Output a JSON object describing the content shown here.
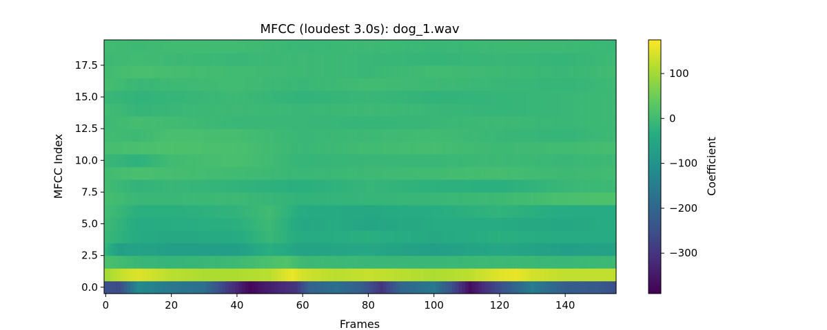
{
  "chart_data": {
    "type": "heatmap",
    "title": "MFCC (loudest 3.0s): dog_1.wav",
    "xlabel": "Frames",
    "ylabel": "MFCC Index",
    "colorbar_label": "Coefficient",
    "colormap": "viridis",
    "n_frames": 156,
    "n_coefficients": 20,
    "xlim": [
      -0.5,
      155.5
    ],
    "ylim": [
      -0.5,
      19.5
    ],
    "x_ticks": [
      0,
      20,
      40,
      60,
      80,
      100,
      120,
      140
    ],
    "x_tick_labels": [
      "0",
      "20",
      "40",
      "60",
      "80",
      "100",
      "120",
      "140"
    ],
    "y_ticks": [
      0.0,
      2.5,
      5.0,
      7.5,
      10.0,
      12.5,
      15.0,
      17.5
    ],
    "y_tick_labels": [
      "0.0",
      "2.5",
      "5.0",
      "7.5",
      "10.0",
      "12.5",
      "15.0",
      "17.5"
    ],
    "color_range": [
      -390,
      175
    ],
    "colorbar_ticks": [
      100,
      0,
      -100,
      -200,
      -300
    ],
    "colorbar_tick_labels": [
      "100",
      "0",
      "−100",
      "−200",
      "−300"
    ],
    "coefficient_profiles": [
      {
        "index": 0,
        "frames": [
          0,
          4,
          10,
          20,
          30,
          38,
          44,
          48,
          52,
          58,
          62,
          70,
          78,
          84,
          90,
          100,
          105,
          111,
          116,
          124,
          130,
          140,
          150,
          155
        ],
        "values": [
          -250,
          -260,
          -120,
          -160,
          -180,
          -300,
          -380,
          -350,
          -330,
          -300,
          -210,
          -180,
          -220,
          -300,
          -200,
          -160,
          -240,
          -370,
          -300,
          -210,
          -150,
          -220,
          -230,
          -250
        ]
      },
      {
        "index": 1,
        "frames": [
          0,
          5,
          10,
          20,
          30,
          40,
          50,
          57,
          60,
          70,
          80,
          90,
          100,
          110,
          120,
          125,
          130,
          140,
          155
        ],
        "values": [
          100,
          130,
          150,
          120,
          110,
          110,
          120,
          160,
          140,
          120,
          130,
          120,
          110,
          120,
          150,
          160,
          140,
          125,
          125
        ]
      },
      {
        "index": 2,
        "frames": [
          0,
          10,
          20,
          40,
          55,
          60,
          80,
          100,
          120,
          140,
          155
        ],
        "values": [
          10,
          -10,
          -15,
          -5,
          20,
          -5,
          -10,
          -10,
          -5,
          -10,
          -5
        ]
      },
      {
        "index": 3,
        "frames": [
          0,
          4,
          10,
          20,
          40,
          50,
          60,
          80,
          100,
          120,
          140,
          155
        ],
        "values": [
          -20,
          -70,
          -60,
          -70,
          -70,
          -30,
          -60,
          -50,
          -70,
          -50,
          -70,
          -60
        ]
      },
      {
        "index": 4,
        "frames": [
          0,
          10,
          20,
          40,
          50,
          60,
          80,
          100,
          120,
          140,
          155
        ],
        "values": [
          -10,
          -40,
          -45,
          -40,
          -10,
          -40,
          -30,
          -45,
          -30,
          -40,
          -40
        ]
      },
      {
        "index": 5,
        "frames": [
          0,
          10,
          20,
          40,
          50,
          60,
          70,
          80,
          100,
          120,
          140,
          155
        ],
        "values": [
          -5,
          -40,
          -35,
          -30,
          -5,
          -50,
          -40,
          -55,
          -40,
          -40,
          -50,
          -35
        ]
      },
      {
        "index": 6,
        "frames": [
          0,
          10,
          20,
          40,
          50,
          60,
          80,
          100,
          120,
          140,
          155
        ],
        "values": [
          0,
          -30,
          -30,
          -20,
          0,
          -40,
          -45,
          -35,
          -20,
          -40,
          -40
        ]
      },
      {
        "index": 7,
        "frames": [
          0,
          10,
          20,
          40,
          60,
          80,
          100,
          120,
          140,
          155
        ],
        "values": [
          5,
          -10,
          -10,
          -5,
          -20,
          -15,
          -10,
          -5,
          10,
          15
        ]
      },
      {
        "index": 8,
        "frames": [
          0,
          10,
          20,
          40,
          60,
          80,
          100,
          120,
          140,
          155
        ],
        "values": [
          0,
          -20,
          -10,
          -20,
          -30,
          -15,
          -25,
          -30,
          -10,
          -5
        ]
      },
      {
        "index": 9,
        "frames": [
          0,
          10,
          20,
          40,
          60,
          80,
          100,
          120,
          140,
          155
        ],
        "values": [
          0,
          10,
          5,
          0,
          -10,
          -5,
          0,
          5,
          -5,
          0
        ]
      },
      {
        "index": 10,
        "frames": [
          0,
          10,
          20,
          40,
          60,
          80,
          100,
          120,
          140,
          155
        ],
        "values": [
          -10,
          -25,
          0,
          10,
          -15,
          -10,
          -10,
          -5,
          -10,
          -5
        ]
      },
      {
        "index": 11,
        "frames": [
          0,
          10,
          20,
          40,
          60,
          80,
          100,
          120,
          140,
          155
        ],
        "values": [
          5,
          10,
          15,
          10,
          -10,
          0,
          5,
          -5,
          0,
          5
        ]
      },
      {
        "index": 12,
        "frames": [
          0,
          10,
          20,
          40,
          60,
          80,
          100,
          120,
          140,
          155
        ],
        "values": [
          0,
          -5,
          10,
          5,
          -10,
          -5,
          0,
          -10,
          -15,
          -5
        ]
      },
      {
        "index": 13,
        "frames": [
          0,
          10,
          20,
          40,
          60,
          80,
          100,
          120,
          140,
          155
        ],
        "values": [
          -5,
          5,
          0,
          -10,
          -10,
          -15,
          -10,
          -5,
          -10,
          -5
        ]
      },
      {
        "index": 14,
        "frames": [
          0,
          10,
          20,
          40,
          60,
          80,
          100,
          120,
          140,
          155
        ],
        "values": [
          0,
          -15,
          -10,
          -5,
          -10,
          -5,
          -10,
          -15,
          -10,
          -5
        ]
      },
      {
        "index": 15,
        "frames": [
          0,
          10,
          20,
          40,
          60,
          80,
          100,
          120,
          140,
          155
        ],
        "values": [
          -10,
          -20,
          -15,
          -5,
          -20,
          -10,
          -20,
          -15,
          -10,
          -5
        ]
      },
      {
        "index": 16,
        "frames": [
          0,
          10,
          20,
          40,
          60,
          80,
          100,
          120,
          140,
          155
        ],
        "values": [
          5,
          -10,
          -5,
          0,
          -10,
          0,
          -5,
          -10,
          -15,
          -5
        ]
      },
      {
        "index": 17,
        "frames": [
          0,
          10,
          20,
          40,
          60,
          80,
          100,
          120,
          140,
          155
        ],
        "values": [
          0,
          10,
          5,
          0,
          -5,
          -10,
          0,
          -5,
          -10,
          0
        ]
      },
      {
        "index": 18,
        "frames": [
          0,
          10,
          20,
          40,
          60,
          80,
          100,
          120,
          140,
          155
        ],
        "values": [
          -5,
          0,
          -5,
          -10,
          -5,
          -10,
          -15,
          -10,
          -15,
          -5
        ]
      },
      {
        "index": 19,
        "frames": [
          0,
          10,
          20,
          40,
          60,
          80,
          100,
          120,
          140,
          155
        ],
        "values": [
          0,
          -5,
          0,
          0,
          -10,
          -5,
          -10,
          -5,
          -5,
          -10
        ]
      }
    ]
  }
}
